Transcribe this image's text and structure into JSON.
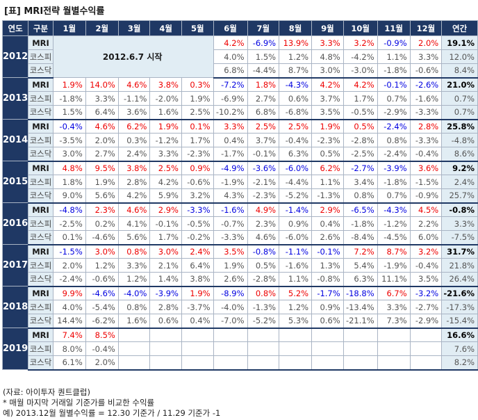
{
  "title": "[표] MRI전략 월별수익률",
  "headers": [
    "연도",
    "구분",
    "1월",
    "2월",
    "3월",
    "4월",
    "5월",
    "6월",
    "7월",
    "8월",
    "9월",
    "10월",
    "11월",
    "12월",
    "연간"
  ],
  "start_note": "2012.6.7 시작",
  "years": [
    {
      "year": "2012",
      "start_col": 5,
      "rows": [
        {
          "label": "MRI",
          "values": [
            "",
            "",
            "",
            "",
            "",
            "4.2%",
            "-6.9%",
            "13.9%",
            "3.3%",
            "3.2%",
            "-0.9%",
            "2.0%",
            "19.1%"
          ]
        },
        {
          "label": "코스피",
          "values": [
            "",
            "",
            "",
            "",
            "",
            "4.0%",
            "1.5%",
            "1.2%",
            "4.8%",
            "-4.2%",
            "1.1%",
            "3.3%",
            "12.0%"
          ]
        },
        {
          "label": "코스닥",
          "values": [
            "",
            "",
            "",
            "",
            "",
            "6.8%",
            "-4.4%",
            "8.7%",
            "3.0%",
            "-3.0%",
            "-1.8%",
            "-0.6%",
            "8.4%"
          ]
        }
      ]
    },
    {
      "year": "2013",
      "rows": [
        {
          "label": "MRI",
          "values": [
            "1.9%",
            "14.0%",
            "4.6%",
            "3.8%",
            "0.3%",
            "-7.2%",
            "1.8%",
            "-4.3%",
            "4.2%",
            "4.2%",
            "-0.1%",
            "-2.6%",
            "21.0%"
          ]
        },
        {
          "label": "코스피",
          "values": [
            "-1.8%",
            "3.3%",
            "-1.1%",
            "-2.0%",
            "1.9%",
            "-6.9%",
            "2.7%",
            "0.6%",
            "3.7%",
            "1.7%",
            "0.7%",
            "-1.6%",
            "0.7%"
          ]
        },
        {
          "label": "코스닥",
          "values": [
            "1.5%",
            "6.4%",
            "3.6%",
            "1.6%",
            "2.5%",
            "-10.2%",
            "6.8%",
            "-6.8%",
            "3.5%",
            "-0.5%",
            "-2.9%",
            "-3.3%",
            "0.7%"
          ]
        }
      ]
    },
    {
      "year": "2014",
      "rows": [
        {
          "label": "MRI",
          "values": [
            "-0.4%",
            "4.6%",
            "6.2%",
            "1.9%",
            "0.1%",
            "3.3%",
            "2.5%",
            "2.5%",
            "1.9%",
            "0.5%",
            "-2.4%",
            "2.8%",
            "25.8%"
          ]
        },
        {
          "label": "코스피",
          "values": [
            "-3.5%",
            "2.0%",
            "0.3%",
            "-1.2%",
            "1.7%",
            "0.4%",
            "3.7%",
            "-0.4%",
            "-2.3%",
            "-2.8%",
            "0.8%",
            "-3.3%",
            "-4.8%"
          ]
        },
        {
          "label": "코스닥",
          "values": [
            "3.0%",
            "2.7%",
            "2.4%",
            "3.3%",
            "-2.3%",
            "-1.7%",
            "-0.1%",
            "6.3%",
            "0.5%",
            "-2.5%",
            "-2.4%",
            "-0.4%",
            "8.6%"
          ]
        }
      ]
    },
    {
      "year": "2015",
      "rows": [
        {
          "label": "MRI",
          "values": [
            "4.8%",
            "9.5%",
            "3.8%",
            "2.5%",
            "0.9%",
            "-4.9%",
            "-3.6%",
            "-6.0%",
            "6.2%",
            "-2.7%",
            "-3.9%",
            "3.6%",
            "9.2%"
          ]
        },
        {
          "label": "코스피",
          "values": [
            "1.8%",
            "1.9%",
            "2.8%",
            "4.2%",
            "-0.6%",
            "-1.9%",
            "-2.1%",
            "-4.4%",
            "1.1%",
            "3.4%",
            "-1.8%",
            "-1.5%",
            "2.4%"
          ]
        },
        {
          "label": "코스닥",
          "values": [
            "9.0%",
            "5.6%",
            "4.2%",
            "5.9%",
            "3.2%",
            "4.3%",
            "-2.3%",
            "-5.2%",
            "-1.3%",
            "0.8%",
            "0.7%",
            "-0.9%",
            "25.7%"
          ]
        }
      ]
    },
    {
      "year": "2016",
      "rows": [
        {
          "label": "MRI",
          "values": [
            "-4.8%",
            "2.3%",
            "4.6%",
            "2.9%",
            "-3.3%",
            "-1.6%",
            "4.9%",
            "-1.4%",
            "2.9%",
            "-6.5%",
            "-4.3%",
            "4.5%",
            "-0.8%"
          ]
        },
        {
          "label": "코스피",
          "values": [
            "-2.5%",
            "0.2%",
            "4.1%",
            "-0.1%",
            "-0.5%",
            "-0.7%",
            "2.3%",
            "0.9%",
            "0.4%",
            "-1.8%",
            "-1.2%",
            "2.2%",
            "3.3%"
          ]
        },
        {
          "label": "코스닥",
          "values": [
            "0.1%",
            "-4.6%",
            "5.6%",
            "1.7%",
            "-0.2%",
            "-3.3%",
            "4.6%",
            "-6.0%",
            "2.6%",
            "-8.4%",
            "-4.5%",
            "6.0%",
            "-7.5%"
          ]
        }
      ]
    },
    {
      "year": "2017",
      "rows": [
        {
          "label": "MRI",
          "values": [
            "-1.5%",
            "3.0%",
            "0.8%",
            "3.0%",
            "2.4%",
            "3.5%",
            "-0.8%",
            "-1.1%",
            "-0.1%",
            "7.2%",
            "8.7%",
            "3.2%",
            "31.7%"
          ]
        },
        {
          "label": "코스피",
          "values": [
            "2.0%",
            "1.2%",
            "3.3%",
            "2.1%",
            "6.4%",
            "1.9%",
            "0.5%",
            "-1.6%",
            "1.3%",
            "5.4%",
            "-1.9%",
            "-0.4%",
            "21.8%"
          ]
        },
        {
          "label": "코스닥",
          "values": [
            "-2.4%",
            "-0.6%",
            "1.2%",
            "1.4%",
            "3.8%",
            "2.6%",
            "-2.8%",
            "1.1%",
            "-0.8%",
            "6.3%",
            "11.1%",
            "3.5%",
            "26.4%"
          ]
        }
      ]
    },
    {
      "year": "2018",
      "rows": [
        {
          "label": "MRI",
          "values": [
            "9.9%",
            "-4.6%",
            "-4.0%",
            "-3.9%",
            "1.9%",
            "-8.9%",
            "0.8%",
            "5.2%",
            "-1.7%",
            "-18.8%",
            "6.7%",
            "-3.2%",
            "-21.6%"
          ]
        },
        {
          "label": "코스피",
          "values": [
            "4.0%",
            "-5.4%",
            "0.8%",
            "2.8%",
            "-3.7%",
            "-4.0%",
            "-1.3%",
            "1.2%",
            "0.9%",
            "-13.4%",
            "3.3%",
            "-2.7%",
            "-17.3%"
          ]
        },
        {
          "label": "코스닥",
          "values": [
            "14.4%",
            "-6.2%",
            "1.6%",
            "0.6%",
            "0.4%",
            "-7.0%",
            "-5.2%",
            "5.3%",
            "0.6%",
            "-21.1%",
            "7.3%",
            "-2.9%",
            "-15.4%"
          ]
        }
      ]
    },
    {
      "year": "2019",
      "rows": [
        {
          "label": "MRI",
          "values": [
            "7.4%",
            "8.5%",
            "",
            "",
            "",
            "",
            "",
            "",
            "",
            "",
            "",
            "",
            "16.6%"
          ]
        },
        {
          "label": "코스피",
          "values": [
            "8.0%",
            "-0.4%",
            "",
            "",
            "",
            "",
            "",
            "",
            "",
            "",
            "",
            "",
            "7.6%"
          ]
        },
        {
          "label": "코스닥",
          "values": [
            "6.1%",
            "2.0%",
            "",
            "",
            "",
            "",
            "",
            "",
            "",
            "",
            "",
            "",
            "8.2%"
          ]
        }
      ]
    }
  ],
  "footer": [
    "(자료: 아이투자 퀀트클럽)",
    "* 매월 마지막 거래일 기준가를 비교한 수익률",
    "예) 2013.12월 월별수익률 = 12.30 기준가 / 11.29 기준가 -1"
  ]
}
